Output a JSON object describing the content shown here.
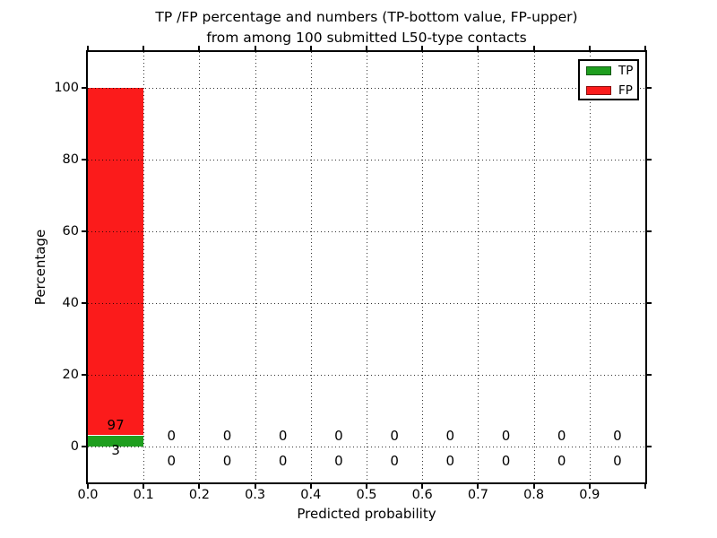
{
  "chart_data": {
    "type": "bar",
    "stacked": true,
    "title_line1": "TP /FP percentage and numbers (TP-bottom value, FP-upper)",
    "title_line2": "from among 100 submitted L50-type contacts",
    "xlabel": "Predicted probability",
    "ylabel": "Percentage",
    "xlim": [
      0.0,
      1.0
    ],
    "ylim": [
      -10,
      110
    ],
    "x_tick_labels": [
      "0.0",
      "0.1",
      "0.2",
      "0.3",
      "0.4",
      "0.5",
      "0.6",
      "0.7",
      "0.8",
      "0.9"
    ],
    "y_tick_values": [
      0,
      20,
      40,
      60,
      80,
      100
    ],
    "bin_width": 0.1,
    "bin_left_edges": [
      0.0,
      0.1,
      0.2,
      0.3,
      0.4,
      0.5,
      0.6,
      0.7,
      0.8,
      0.9
    ],
    "series": [
      {
        "name": "TP",
        "color": "#1f9e1f",
        "values": [
          3,
          0,
          0,
          0,
          0,
          0,
          0,
          0,
          0,
          0
        ]
      },
      {
        "name": "FP",
        "color": "#fb1b1b",
        "values": [
          97,
          0,
          0,
          0,
          0,
          0,
          0,
          0,
          0,
          0
        ]
      }
    ],
    "value_labels": {
      "fp_row": [
        "97",
        "0",
        "0",
        "0",
        "0",
        "0",
        "0",
        "0",
        "0",
        "0"
      ],
      "tp_row": [
        "3",
        "0",
        "0",
        "0",
        "0",
        "0",
        "0",
        "0",
        "0",
        "0"
      ]
    },
    "legend": {
      "position": "upper right",
      "entries": [
        {
          "label": "TP",
          "color": "#1f9e1f"
        },
        {
          "label": "FP",
          "color": "#fb1b1b"
        }
      ]
    },
    "grid": {
      "style": "dotted",
      "color": "#000000"
    },
    "total_contacts": 100
  }
}
